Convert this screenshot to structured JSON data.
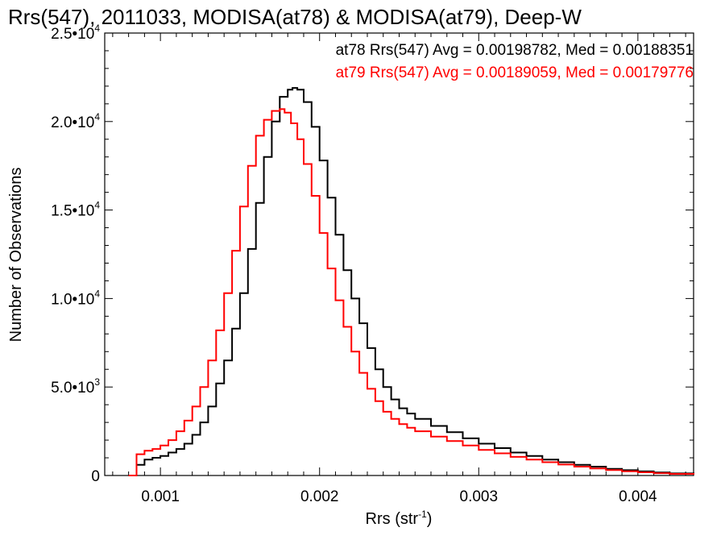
{
  "chart_data": {
    "type": "line",
    "title": "Rrs(547), 2011033, MODISA(at78) & MODISA(at79), Deep-W",
    "xlabel_base": "Rrs (str",
    "xlabel_sup": "-1",
    "xlabel_close": ")",
    "ylabel": "Number of Observations",
    "xlim": [
      0.00065,
      0.00435
    ],
    "ylim": [
      0,
      25000
    ],
    "x_ticks": [
      {
        "value": 0.001,
        "label": "0.001"
      },
      {
        "value": 0.002,
        "label": "0.002"
      },
      {
        "value": 0.003,
        "label": "0.003"
      },
      {
        "value": 0.004,
        "label": "0.004"
      }
    ],
    "y_ticks": [
      {
        "value": 0,
        "mant": "0",
        "exp": ""
      },
      {
        "value": 5000,
        "mant": "5.0•10",
        "exp": "3"
      },
      {
        "value": 10000,
        "mant": "1.0•10",
        "exp": "4"
      },
      {
        "value": 15000,
        "mant": "1.5•10",
        "exp": "4"
      },
      {
        "value": 20000,
        "mant": "2.0•10",
        "exp": "4"
      },
      {
        "value": 25000,
        "mant": "2.5•10",
        "exp": "4"
      }
    ],
    "annotations": [
      {
        "text": "at78 Rrs(547) Avg = 0.00198782, Med = 0.00188351",
        "color": "#000000"
      },
      {
        "text": "at79 Rrs(547) Avg = 0.00189059, Med = 0.00179776",
        "color": "#ff0000"
      }
    ],
    "series": [
      {
        "color": "#000000",
        "x": [
          0.0008,
          0.00085,
          0.0009,
          0.00095,
          0.001,
          0.00105,
          0.0011,
          0.00115,
          0.0012,
          0.00125,
          0.0013,
          0.00135,
          0.0014,
          0.00145,
          0.0015,
          0.00155,
          0.0016,
          0.00165,
          0.0017,
          0.00175,
          0.0018,
          0.00183,
          0.00186,
          0.0019,
          0.00195,
          0.002,
          0.00205,
          0.0021,
          0.00215,
          0.0022,
          0.00225,
          0.0023,
          0.00235,
          0.0024,
          0.00245,
          0.0025,
          0.00255,
          0.0026,
          0.0027,
          0.0028,
          0.0029,
          0.003,
          0.0031,
          0.0032,
          0.0033,
          0.0034,
          0.0035,
          0.0036,
          0.0037,
          0.0038,
          0.0039,
          0.004,
          0.0041,
          0.0042,
          0.00435
        ],
        "y": [
          0,
          600,
          900,
          1000,
          1100,
          1300,
          1500,
          1800,
          2300,
          3000,
          3900,
          5200,
          6500,
          8300,
          10300,
          12800,
          15400,
          18000,
          20000,
          21400,
          21800,
          21900,
          21800,
          21100,
          19700,
          17800,
          15700,
          13600,
          11600,
          10000,
          8600,
          7200,
          6000,
          5000,
          4300,
          3800,
          3500,
          3200,
          2800,
          2450,
          2100,
          1800,
          1550,
          1300,
          1100,
          900,
          750,
          600,
          500,
          380,
          300,
          230,
          170,
          120,
          60
        ]
      },
      {
        "color": "#ff0000",
        "x": [
          0.0008,
          0.00085,
          0.0009,
          0.00095,
          0.001,
          0.00105,
          0.0011,
          0.00115,
          0.0012,
          0.00125,
          0.0013,
          0.00135,
          0.0014,
          0.00145,
          0.0015,
          0.00155,
          0.0016,
          0.00165,
          0.0017,
          0.00175,
          0.00178,
          0.00182,
          0.00186,
          0.0019,
          0.00195,
          0.002,
          0.00205,
          0.0021,
          0.00215,
          0.0022,
          0.00225,
          0.0023,
          0.00235,
          0.0024,
          0.00245,
          0.0025,
          0.00255,
          0.0026,
          0.0027,
          0.0028,
          0.0029,
          0.003,
          0.0031,
          0.0032,
          0.0033,
          0.0034,
          0.0035,
          0.0036,
          0.0037,
          0.0038,
          0.0039,
          0.004,
          0.0041,
          0.0042,
          0.00435
        ],
        "y": [
          0,
          1200,
          1400,
          1500,
          1700,
          2000,
          2500,
          3100,
          3900,
          5000,
          6500,
          8200,
          10300,
          12700,
          15200,
          17500,
          19200,
          20100,
          20600,
          20700,
          20500,
          19900,
          19000,
          17600,
          15800,
          13700,
          11700,
          9900,
          8400,
          7000,
          5800,
          4900,
          4200,
          3600,
          3200,
          2900,
          2700,
          2500,
          2200,
          1950,
          1700,
          1450,
          1250,
          1050,
          900,
          750,
          620,
          500,
          400,
          310,
          240,
          180,
          130,
          90,
          50
        ]
      }
    ]
  }
}
